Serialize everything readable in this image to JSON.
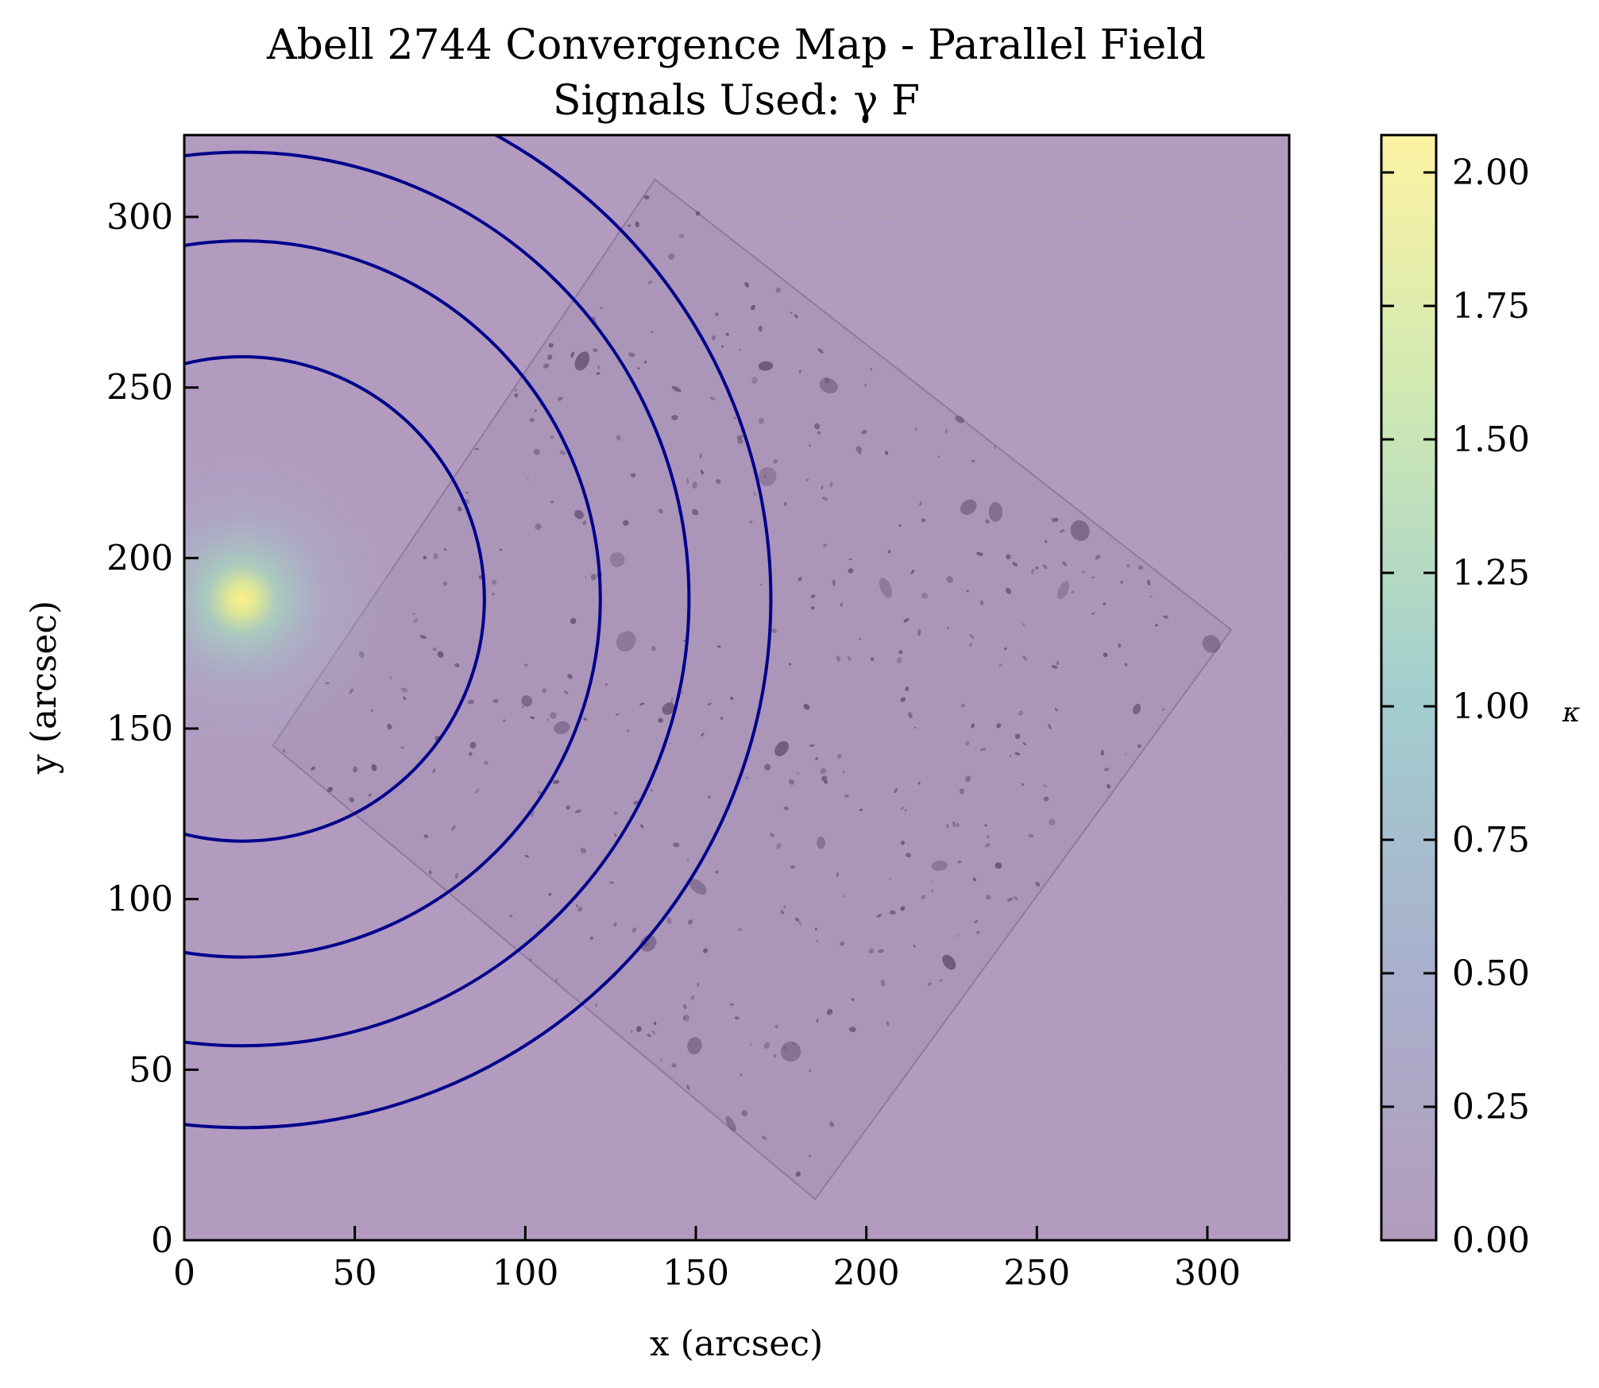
{
  "chart_data": {
    "type": "heatmap",
    "title": "Abell 2744 Convergence Map - Parallel Field",
    "subtitle": "Signals Used: γ F",
    "xlabel": "x (arcsec)",
    "ylabel": "y (arcsec)",
    "xlim": [
      0,
      324
    ],
    "ylim": [
      0,
      324
    ],
    "x_ticks": [
      "0",
      "50",
      "100",
      "150",
      "200",
      "250",
      "300"
    ],
    "y_ticks": [
      "0",
      "50",
      "100",
      "150",
      "200",
      "250",
      "300"
    ],
    "grid": true,
    "colorbar": {
      "label": "κ",
      "range": [
        0,
        2.07
      ],
      "ticks": [
        "0.00",
        "0.25",
        "0.50",
        "0.75",
        "1.00",
        "1.25",
        "1.50",
        "1.75",
        "2.00"
      ],
      "colormap": [
        "#440154",
        "#3b528b",
        "#21918c",
        "#5ec962",
        "#fde725"
      ]
    },
    "peak": {
      "x": 17,
      "y": 188,
      "kappa": 2.07
    },
    "contour_color": "#00008b",
    "contours": [
      {
        "center": [
          17,
          188
        ],
        "radius": 71
      },
      {
        "center": [
          17,
          188
        ],
        "radius": 105
      },
      {
        "center": [
          17,
          188
        ],
        "radius": 131
      },
      {
        "center": [
          17,
          188
        ],
        "radius": 155
      }
    ],
    "field_corners": [
      [
        26,
        145
      ],
      [
        138,
        311
      ],
      [
        307,
        179
      ],
      [
        185,
        12
      ]
    ]
  }
}
